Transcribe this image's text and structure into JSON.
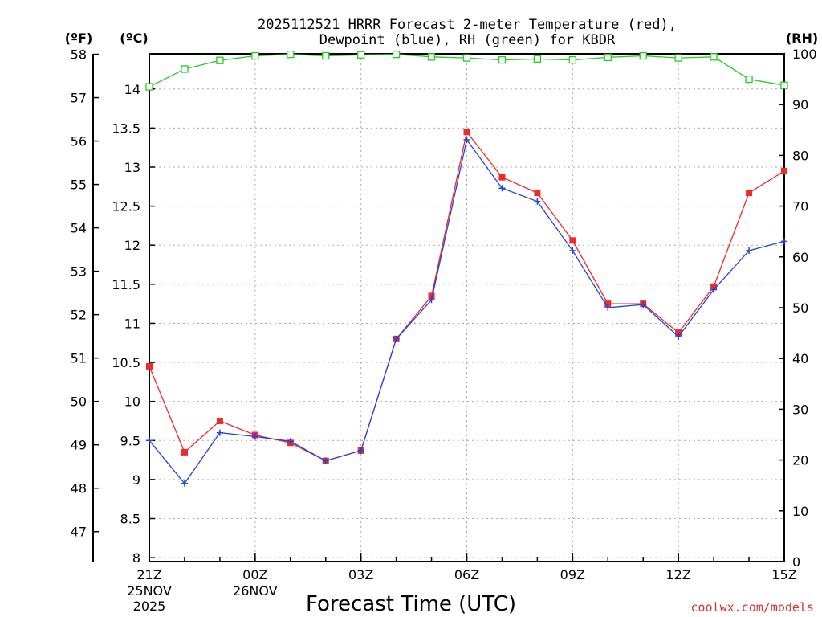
{
  "chart_data": {
    "type": "line",
    "title_line1": "2025112521 HRRR Forecast 2-meter Temperature (red),",
    "title_line2": "Dewpoint (blue), RH (green) for KBDR",
    "xlabel": "Forecast Time (UTC)",
    "unit_labels": {
      "fahrenheit": "(ºF)",
      "celsius": "(ºC)",
      "rh": "(RH)"
    },
    "watermark": "coolwx.com/models",
    "x_hours": [
      0,
      1,
      2,
      3,
      4,
      5,
      6,
      7,
      8,
      9,
      10,
      11,
      12,
      13,
      14,
      15,
      16,
      17,
      18
    ],
    "x_ticks": [
      {
        "hour": 0,
        "label": "21Z",
        "sub1": "25NOV",
        "sub2": "2025"
      },
      {
        "hour": 3,
        "label": "00Z",
        "sub1": "26NOV",
        "sub2": ""
      },
      {
        "hour": 6,
        "label": "03Z",
        "sub1": "",
        "sub2": ""
      },
      {
        "hour": 9,
        "label": "06Z",
        "sub1": "",
        "sub2": ""
      },
      {
        "hour": 12,
        "label": "09Z",
        "sub1": "",
        "sub2": ""
      },
      {
        "hour": 15,
        "label": "12Z",
        "sub1": "",
        "sub2": ""
      },
      {
        "hour": 18,
        "label": "15Z",
        "sub1": "",
        "sub2": ""
      }
    ],
    "xlim": [
      0,
      18
    ],
    "celsius_lim": [
      7.95,
      14.45
    ],
    "celsius_ticks": [
      "8",
      "8.5",
      "9",
      "9.5",
      "10",
      "10.5",
      "11",
      "11.5",
      "12",
      "12.5",
      "13",
      "13.5",
      "14"
    ],
    "fahrenheit_ticks": [
      "47",
      "48",
      "49",
      "50",
      "51",
      "52",
      "53",
      "54",
      "55",
      "56",
      "57",
      "58"
    ],
    "rh_lim": [
      0,
      100
    ],
    "rh_ticks": [
      "0",
      "10",
      "20",
      "30",
      "40",
      "50",
      "60",
      "70",
      "80",
      "90",
      "100"
    ],
    "series": [
      {
        "name": "Temperature",
        "color": "#ee2a2a",
        "marker": "square-filled",
        "values": [
          10.45,
          9.35,
          9.75,
          9.57,
          9.47,
          9.24,
          9.37,
          10.8,
          11.35,
          13.45,
          12.87,
          12.67,
          12.06,
          11.25,
          11.25,
          10.88,
          11.47,
          12.67,
          12.95
        ]
      },
      {
        "name": "Dewpoint",
        "color": "#2244dd",
        "marker": "plus",
        "values": [
          9.5,
          8.95,
          9.6,
          9.55,
          9.49,
          9.24,
          9.37,
          10.8,
          11.3,
          13.35,
          12.73,
          12.56,
          11.93,
          11.2,
          11.24,
          10.83,
          11.43,
          11.93,
          12.05
        ]
      },
      {
        "name": "RH",
        "color": "#22cc22",
        "marker": "square-open",
        "axis": "rh",
        "values": [
          93.5,
          97,
          98.7,
          99.6,
          99.9,
          99.6,
          99.8,
          99.9,
          99.4,
          99.2,
          98.8,
          99,
          98.8,
          99.3,
          99.6,
          99.2,
          99.4,
          95,
          93.8
        ]
      }
    ]
  }
}
